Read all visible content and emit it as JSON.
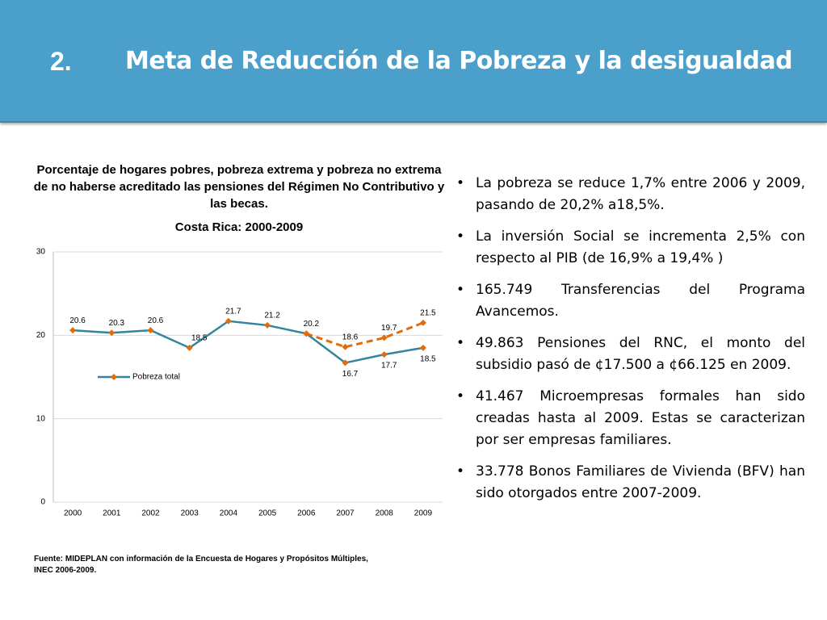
{
  "header": {
    "number": "2.",
    "title": "Meta de Reducción de la Pobreza y la desigualdad"
  },
  "chart_data": {
    "type": "line",
    "title": "Porcentaje de hogares pobres, pobreza extrema y pobreza no extrema de no haberse acreditado las pensiones del Régimen No Contributivo y las becas.",
    "subtitle": "Costa Rica: 2000-2009",
    "categories": [
      "2000",
      "2001",
      "2002",
      "2003",
      "2004",
      "2005",
      "2006",
      "2007",
      "2008",
      "2009"
    ],
    "series": [
      {
        "name": "Pobreza total",
        "color": "#31859c",
        "marker_color": "#e36c09",
        "values": [
          20.6,
          20.3,
          20.6,
          18.5,
          21.7,
          21.2,
          20.2,
          16.7,
          17.7,
          18.5
        ]
      },
      {
        "color": "#e36c09",
        "marker_color": "#e36c09",
        "dashed": true,
        "values": [
          null,
          null,
          null,
          null,
          null,
          null,
          20.2,
          18.6,
          19.7,
          21.5
        ]
      }
    ],
    "ylim": [
      0,
      30
    ],
    "yticks": [
      0,
      10,
      20,
      30
    ],
    "grid": true,
    "data_labels": true
  },
  "bullets": [
    "La pobreza se reduce 1,7% entre 2006 y 2009, pasando de 20,2% a18,5%.",
    "La inversión Social se incrementa 2,5% con respecto al PIB (de 16,9% a 19,4% )",
    "165.749 Transferencias del Programa Avancemos.",
    "49.863 Pensiones del RNC, el monto del subsidio pasó de ¢17.500 a ¢66.125 en 2009.",
    "41.467 Microempresas formales han sido creadas hasta al 2009. Estas se caracterizan por ser empresas familiares.",
    "33.778 Bonos Familiares de Vivienda (BFV) han sido otorgados entre 2007-2009."
  ],
  "source": "Fuente: MIDEPLAN con información de la Encuesta de Hogares y Propósitos Múltiples, INEC 2006-2009."
}
